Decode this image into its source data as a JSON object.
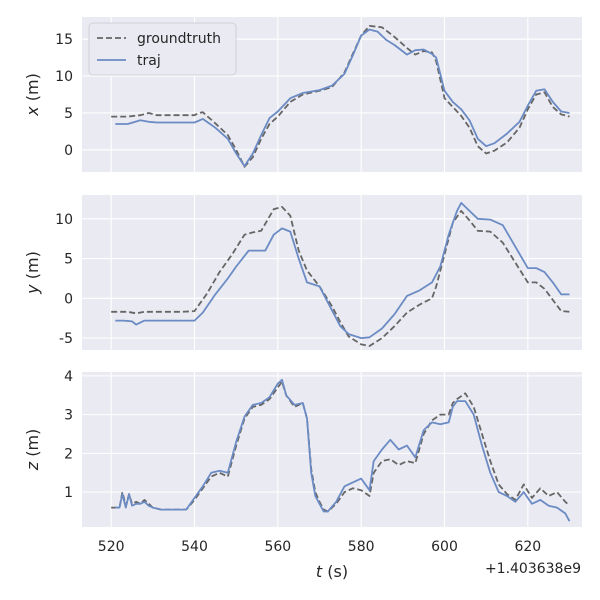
{
  "chart_data": [
    {
      "type": "line",
      "ylabel_var": "x",
      "ylabel_unit": " (m)",
      "xlim": [
        513,
        633
      ],
      "ylim": [
        -3,
        18
      ],
      "yticks": [
        0,
        5,
        10,
        15
      ],
      "legend": {
        "position": "upper-left",
        "entries": [
          "groundtruth",
          "traj"
        ]
      },
      "series": [
        {
          "name": "groundtruth",
          "style": "dashed",
          "color": "#666666",
          "x": [
            520,
            524,
            527,
            529,
            531,
            535,
            540,
            541,
            542,
            545,
            548,
            550,
            552,
            554,
            556,
            558,
            560,
            563,
            566,
            570,
            573,
            576,
            578,
            580,
            582,
            585,
            588,
            591,
            593,
            595,
            597,
            598,
            600,
            602,
            604,
            606,
            608,
            610,
            612,
            615,
            618,
            620,
            622,
            624,
            626,
            628,
            630
          ],
          "y": [
            4.5,
            4.5,
            4.7,
            5.0,
            4.7,
            4.7,
            4.7,
            5.0,
            5.1,
            3.6,
            2.0,
            0.0,
            -2.3,
            -1.0,
            1.5,
            3.5,
            4.5,
            6.5,
            7.5,
            8.0,
            8.5,
            10.5,
            13.0,
            15.5,
            16.8,
            16.6,
            15.3,
            13.8,
            12.9,
            13.4,
            13.2,
            12.0,
            7.0,
            5.8,
            4.6,
            3.0,
            0.5,
            -0.5,
            -0.1,
            1.0,
            3.0,
            5.5,
            7.5,
            7.8,
            5.8,
            4.8,
            4.5
          ]
        },
        {
          "name": "traj",
          "style": "solid",
          "color": "#6b8bc4",
          "x": [
            521,
            524,
            527,
            529,
            531,
            535,
            540,
            542,
            545,
            548,
            550,
            552,
            554,
            556,
            558,
            560,
            563,
            566,
            570,
            573,
            576,
            578,
            580,
            582,
            584,
            586,
            588,
            591,
            593,
            595,
            597,
            598,
            600,
            602,
            604,
            606,
            608,
            610,
            612,
            615,
            618,
            620,
            622,
            624,
            626,
            628,
            630
          ],
          "y": [
            3.5,
            3.5,
            4.0,
            3.8,
            3.7,
            3.7,
            3.7,
            4.2,
            3.0,
            1.5,
            -0.5,
            -2.2,
            -0.5,
            2.0,
            4.3,
            5.2,
            7.0,
            7.7,
            8.1,
            8.7,
            10.3,
            12.8,
            15.5,
            16.3,
            16.0,
            14.9,
            14.2,
            12.9,
            13.5,
            13.6,
            13.0,
            12.5,
            8.0,
            6.5,
            5.5,
            4.0,
            1.5,
            0.5,
            0.9,
            2.2,
            3.8,
            6.0,
            8.0,
            8.2,
            6.5,
            5.2,
            5.0
          ]
        }
      ]
    },
    {
      "type": "line",
      "ylabel_var": "y",
      "ylabel_unit": " (m)",
      "xlim": [
        513,
        633
      ],
      "ylim": [
        -6.5,
        13
      ],
      "yticks": [
        -5,
        0,
        5,
        10
      ],
      "series": [
        {
          "name": "groundtruth",
          "style": "dashed",
          "color": "#666666",
          "x": [
            520,
            524,
            526,
            528,
            530,
            533,
            537,
            540,
            543,
            546,
            549,
            552,
            554,
            556,
            559,
            561,
            563,
            565,
            567,
            570,
            573,
            575,
            577,
            580,
            582,
            585,
            588,
            591,
            594,
            597,
            598,
            600,
            602,
            604,
            606,
            608,
            611,
            614,
            617,
            620,
            622,
            624,
            626,
            628,
            630
          ],
          "y": [
            -1.7,
            -1.7,
            -1.9,
            -1.7,
            -1.7,
            -1.7,
            -1.7,
            -1.6,
            0.6,
            3.3,
            5.5,
            8.0,
            8.3,
            8.5,
            11.2,
            11.5,
            10.4,
            6.0,
            3.5,
            1.5,
            -1.0,
            -3.0,
            -4.8,
            -5.8,
            -6.0,
            -5.0,
            -3.5,
            -1.8,
            -0.8,
            0.0,
            1.5,
            5.5,
            9.5,
            11.0,
            9.8,
            8.5,
            8.4,
            7.0,
            4.5,
            2.0,
            2.0,
            1.2,
            -0.2,
            -1.6,
            -1.7
          ]
        },
        {
          "name": "traj",
          "style": "solid",
          "color": "#6b8bc4",
          "x": [
            521,
            523,
            525,
            526,
            528,
            530,
            533,
            537,
            540,
            542,
            545,
            548,
            550,
            553,
            555,
            557,
            559,
            561,
            563,
            565,
            567,
            570,
            573,
            575,
            577,
            580,
            582,
            585,
            588,
            591,
            594,
            597,
            599,
            601,
            603,
            604,
            606,
            608,
            611,
            614,
            617,
            620,
            622,
            624,
            626,
            628,
            630
          ],
          "y": [
            -2.8,
            -2.8,
            -2.9,
            -3.3,
            -2.8,
            -2.8,
            -2.8,
            -2.8,
            -2.8,
            -1.8,
            0.5,
            2.5,
            4.0,
            6.0,
            6.0,
            6.0,
            8.0,
            8.8,
            8.4,
            5.0,
            2.0,
            1.5,
            -1.5,
            -3.5,
            -4.5,
            -5.0,
            -4.9,
            -3.8,
            -2.0,
            0.3,
            1.0,
            2.0,
            4.0,
            8.0,
            11.0,
            12.0,
            11.0,
            10.0,
            9.9,
            9.2,
            6.5,
            3.8,
            3.8,
            3.3,
            2.0,
            0.5,
            0.5
          ]
        }
      ]
    },
    {
      "type": "line",
      "ylabel_var": "z",
      "ylabel_unit": " (m)",
      "xlim": [
        513,
        633
      ],
      "ylim": [
        0.1,
        4.1
      ],
      "yticks": [
        1,
        2,
        3,
        4
      ],
      "xticks": [
        520,
        540,
        560,
        580,
        600,
        620
      ],
      "xlabel_var": "t",
      "xlabel_unit": " (s)",
      "x_offset_label": "+1.403638e9",
      "series": [
        {
          "name": "groundtruth",
          "style": "dashed",
          "color": "#666666",
          "x": [
            520,
            522,
            522.7,
            523.5,
            524.3,
            525,
            526,
            527,
            528,
            529,
            530,
            532,
            535,
            538,
            540,
            542,
            544,
            546,
            548,
            550,
            552,
            554,
            556,
            558,
            560,
            561,
            562,
            564,
            566,
            567,
            568,
            569,
            570,
            571,
            572,
            574,
            576,
            578,
            580,
            582,
            583,
            585,
            587,
            589,
            591,
            593,
            595,
            597,
            599,
            601,
            602,
            603,
            605,
            607,
            609,
            611,
            613,
            615,
            617,
            619,
            621,
            623,
            625,
            627,
            629,
            630
          ],
          "y": [
            0.6,
            0.6,
            1.0,
            0.65,
            0.95,
            0.7,
            0.75,
            0.7,
            0.8,
            0.7,
            0.6,
            0.55,
            0.55,
            0.55,
            0.8,
            1.1,
            1.4,
            1.5,
            1.4,
            2.2,
            2.9,
            3.2,
            3.25,
            3.4,
            3.7,
            3.85,
            3.5,
            3.2,
            3.3,
            2.9,
            1.6,
            1.0,
            0.75,
            0.55,
            0.5,
            0.7,
            1.0,
            1.1,
            1.05,
            0.9,
            1.5,
            1.8,
            1.85,
            1.7,
            1.8,
            1.75,
            2.5,
            2.85,
            3.0,
            3.0,
            3.3,
            3.4,
            3.55,
            3.2,
            2.5,
            1.8,
            1.2,
            0.95,
            0.8,
            1.2,
            0.85,
            1.1,
            0.9,
            1.0,
            0.75,
            0.65
          ]
        },
        {
          "name": "traj",
          "style": "solid",
          "color": "#6b8bc4",
          "x": [
            521,
            522,
            522.7,
            523.5,
            524.3,
            525,
            526,
            527,
            528,
            529,
            530,
            532,
            535,
            538,
            540,
            542,
            544,
            546,
            548,
            550,
            552,
            554,
            556,
            558,
            560,
            561,
            562,
            564,
            566,
            567,
            568,
            569,
            570,
            571,
            572,
            574,
            576,
            578,
            580,
            582,
            583,
            585,
            587,
            589,
            591,
            593,
            595,
            597,
            599,
            601,
            602,
            603,
            605,
            607,
            609,
            611,
            613,
            615,
            617,
            619,
            621,
            623,
            625,
            627,
            629,
            630
          ],
          "y": [
            0.6,
            0.6,
            0.95,
            0.6,
            0.95,
            0.65,
            0.7,
            0.7,
            0.75,
            0.65,
            0.6,
            0.55,
            0.55,
            0.55,
            0.85,
            1.15,
            1.5,
            1.55,
            1.5,
            2.3,
            2.95,
            3.25,
            3.3,
            3.45,
            3.8,
            3.9,
            3.5,
            3.25,
            3.3,
            2.9,
            1.5,
            0.9,
            0.7,
            0.5,
            0.5,
            0.75,
            1.15,
            1.25,
            1.35,
            1.05,
            1.8,
            2.1,
            2.35,
            2.1,
            2.2,
            1.9,
            2.6,
            2.8,
            2.75,
            2.8,
            3.2,
            3.35,
            3.35,
            3.0,
            2.2,
            1.5,
            1.0,
            0.9,
            0.75,
            1.0,
            0.7,
            0.8,
            0.65,
            0.6,
            0.45,
            0.25
          ]
        }
      ]
    }
  ]
}
